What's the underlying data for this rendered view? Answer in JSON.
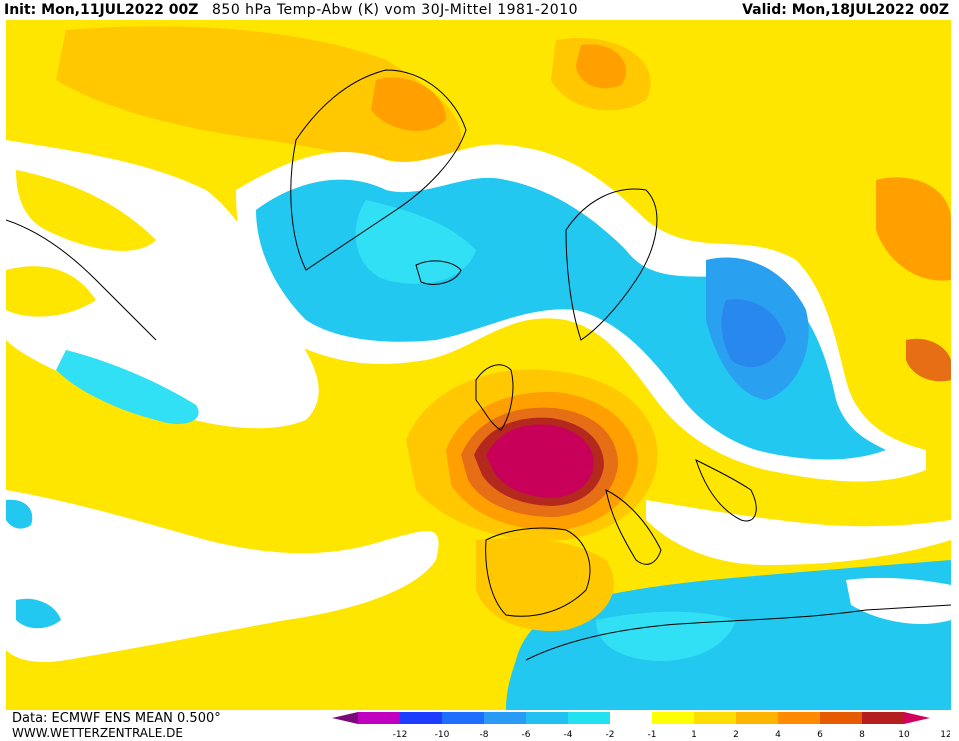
{
  "header": {
    "init_label": "Init:",
    "init_value": "Mon,11JUL2022 00Z",
    "title": "850 hPa Temp-Abw (K) vom 30J-Mittel 1981-2010",
    "valid_label": "Valid:",
    "valid_value": "Mon,18JUL2022 00Z"
  },
  "footer": {
    "data_source": "Data: ECMWF ENS MEAN 0.500°",
    "website": "WWW.WETTERZENTRALE.DE"
  },
  "legend": {
    "ticks": [
      "-12",
      "-10",
      "-8",
      "-6",
      "-4",
      "-2",
      "-1",
      "1",
      "2",
      "4",
      "6",
      "8",
      "10",
      "12"
    ],
    "colors": [
      "#7a0a7a",
      "#c000c0",
      "#1e3cff",
      "#1e6eff",
      "#2a9bf5",
      "#22c0f0",
      "#22e2f0",
      "#ffffff",
      "#ffff00",
      "#ffdc00",
      "#ffb400",
      "#ff8c00",
      "#e65a00",
      "#b41e1e",
      "#d2005a"
    ]
  },
  "colors": {
    "yellow": "#ffe600",
    "gold": "#ffc800",
    "orange": "#ffa000",
    "dark_orange": "#e66e14",
    "red": "#b4281e",
    "magenta": "#c8005a",
    "cyan": "#22c8f0",
    "light_cyan": "#32e0f5",
    "blue": "#2aa0f0",
    "mid_blue": "#2888ee"
  }
}
